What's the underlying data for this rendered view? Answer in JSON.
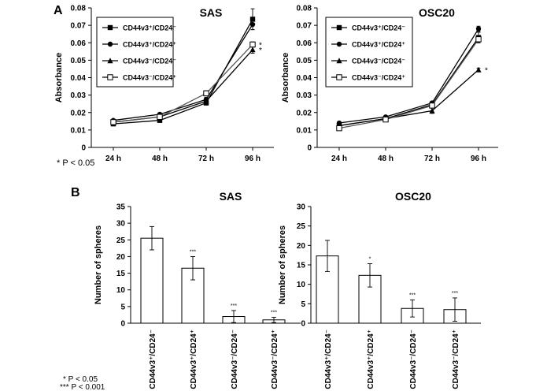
{
  "figure": {
    "panel_a_label": "A",
    "panel_b_label": "B",
    "footnote_a": "* P < 0.05",
    "footnote_b": [
      "*  P < 0.05",
      "***  P < 0.001"
    ]
  },
  "chart_data": [
    {
      "type": "line",
      "title": "SAS",
      "xlabel": "",
      "ylabel": "Absorbance",
      "categories": [
        "24 h",
        "48 h",
        "72 h",
        "96 h"
      ],
      "ylim": [
        0,
        0.08
      ],
      "yticks": [
        "0",
        "0.01",
        "0.02",
        "0.03",
        "0.04",
        "0.05",
        "0.06",
        "0.07",
        "0.08"
      ],
      "legend_position": "top-left",
      "series": [
        {
          "name": "CD44v3⁺/CD24⁻",
          "marker": "square",
          "values": [
            0.0135,
            0.0155,
            0.0255,
            0.0735
          ],
          "errors": [
            0.0006,
            0.0008,
            0.0012,
            0.006
          ],
          "annotation": ""
        },
        {
          "name": "CD44v3⁺/CD24⁺",
          "marker": "circle",
          "values": [
            0.0155,
            0.019,
            0.0275,
            0.0705
          ],
          "errors": [
            0.0006,
            0.0008,
            0.0012,
            0.003
          ],
          "annotation": ""
        },
        {
          "name": "CD44v3⁻/CD24⁻",
          "marker": "triangle",
          "values": [
            0.0145,
            0.0175,
            0.0265,
            0.056
          ],
          "errors": [
            0.0006,
            0.0008,
            0.0012,
            0.002
          ],
          "annotation": "*"
        },
        {
          "name": "CD44v3⁻/CD24⁺",
          "marker": "open-square",
          "values": [
            0.0145,
            0.0175,
            0.031,
            0.059
          ],
          "errors": [
            0.0006,
            0.0008,
            0.0015,
            0.0015
          ],
          "annotation": "*"
        }
      ]
    },
    {
      "type": "line",
      "title": "OSC20",
      "xlabel": "",
      "ylabel": "Absorbance",
      "categories": [
        "24 h",
        "48 h",
        "72 h",
        "96 h"
      ],
      "ylim": [
        0,
        0.08
      ],
      "yticks": [
        "0",
        "0.01",
        "0.02",
        "0.03",
        "0.04",
        "0.05",
        "0.06",
        "0.07",
        "0.08"
      ],
      "legend_position": "top-left",
      "series": [
        {
          "name": "CD44v3⁺/CD24⁻",
          "marker": "square",
          "values": [
            0.0125,
            0.0165,
            0.0245,
            0.063
          ],
          "errors": [
            0.0006,
            0.0006,
            0.001,
            0.003
          ],
          "annotation": ""
        },
        {
          "name": "CD44v3⁺/CD24⁺",
          "marker": "circle",
          "values": [
            0.014,
            0.0175,
            0.0255,
            0.068
          ],
          "errors": [
            0.0006,
            0.0006,
            0.001,
            0.0015
          ],
          "annotation": ""
        },
        {
          "name": "CD44v3⁻/CD24⁻",
          "marker": "triangle",
          "values": [
            0.0125,
            0.0165,
            0.021,
            0.0445
          ],
          "errors": [
            0.0006,
            0.0006,
            0.0015,
            0.001
          ],
          "annotation": "*"
        },
        {
          "name": "CD44v3⁻/CD24⁺",
          "marker": "open-square",
          "values": [
            0.011,
            0.016,
            0.024,
            0.062
          ],
          "errors": [
            0.0006,
            0.0006,
            0.001,
            0.002
          ],
          "annotation": ""
        }
      ]
    },
    {
      "type": "bar",
      "title": "SAS",
      "xlabel": "",
      "ylabel": "Number of spheres",
      "categories": [
        "CD44v3⁺/CD24⁻",
        "CD44v3⁺/CD24⁺",
        "CD44v3⁻/CD24⁻",
        "CD44v3⁻/CD24⁺"
      ],
      "ylim": [
        0,
        35
      ],
      "yticks": [
        "0",
        "5",
        "10",
        "15",
        "20",
        "25",
        "30",
        "35"
      ],
      "values": [
        25.5,
        16.5,
        2.0,
        1.0
      ],
      "errors": [
        3.5,
        3.5,
        1.8,
        0.8
      ],
      "annotations": [
        "",
        "***",
        "***",
        "***"
      ]
    },
    {
      "type": "bar",
      "title": "OSC20",
      "xlabel": "",
      "ylabel": "Number of spheres",
      "categories": [
        "CD44v3⁺/CD24⁻",
        "CD44v3⁺/CD24⁺",
        "CD44v3⁻/CD24⁻",
        "CD44v3⁻/CD24⁺"
      ],
      "ylim": [
        0,
        30
      ],
      "yticks": [
        "0",
        "5",
        "10",
        "15",
        "20",
        "25",
        "30"
      ],
      "values": [
        17.3,
        12.3,
        3.8,
        3.5
      ],
      "errors": [
        4.0,
        3.0,
        2.2,
        3.0
      ],
      "annotations": [
        "",
        "*",
        "***",
        "***"
      ]
    }
  ]
}
